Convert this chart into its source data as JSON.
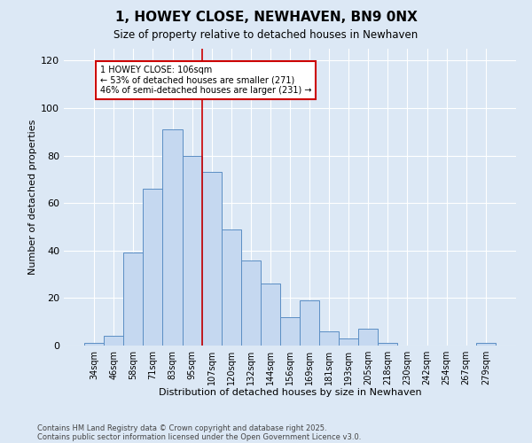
{
  "title1": "1, HOWEY CLOSE, NEWHAVEN, BN9 0NX",
  "title2": "Size of property relative to detached houses in Newhaven",
  "xlabel": "Distribution of detached houses by size in Newhaven",
  "ylabel": "Number of detached properties",
  "bar_labels": [
    "34sqm",
    "46sqm",
    "58sqm",
    "71sqm",
    "83sqm",
    "95sqm",
    "107sqm",
    "120sqm",
    "132sqm",
    "144sqm",
    "156sqm",
    "169sqm",
    "181sqm",
    "193sqm",
    "205sqm",
    "218sqm",
    "230sqm",
    "242sqm",
    "254sqm",
    "267sqm",
    "279sqm"
  ],
  "bar_values": [
    1,
    4,
    39,
    66,
    91,
    80,
    73,
    49,
    36,
    26,
    12,
    19,
    6,
    3,
    7,
    1,
    0,
    0,
    0,
    0,
    1
  ],
  "bar_color": "#c5d8f0",
  "bar_edge_color": "#5b8ec4",
  "vline_color": "#cc0000",
  "annotation_text": "1 HOWEY CLOSE: 106sqm\n← 53% of detached houses are smaller (271)\n46% of semi-detached houses are larger (231) →",
  "annotation_box_color": "#ffffff",
  "annotation_box_edge": "#cc0000",
  "ylim": [
    0,
    125
  ],
  "yticks": [
    0,
    20,
    40,
    60,
    80,
    100,
    120
  ],
  "footer1": "Contains HM Land Registry data © Crown copyright and database right 2025.",
  "footer2": "Contains public sector information licensed under the Open Government Licence v3.0.",
  "bg_color": "#dce8f5",
  "plot_bg_color": "#dce8f5",
  "vline_index": 6
}
